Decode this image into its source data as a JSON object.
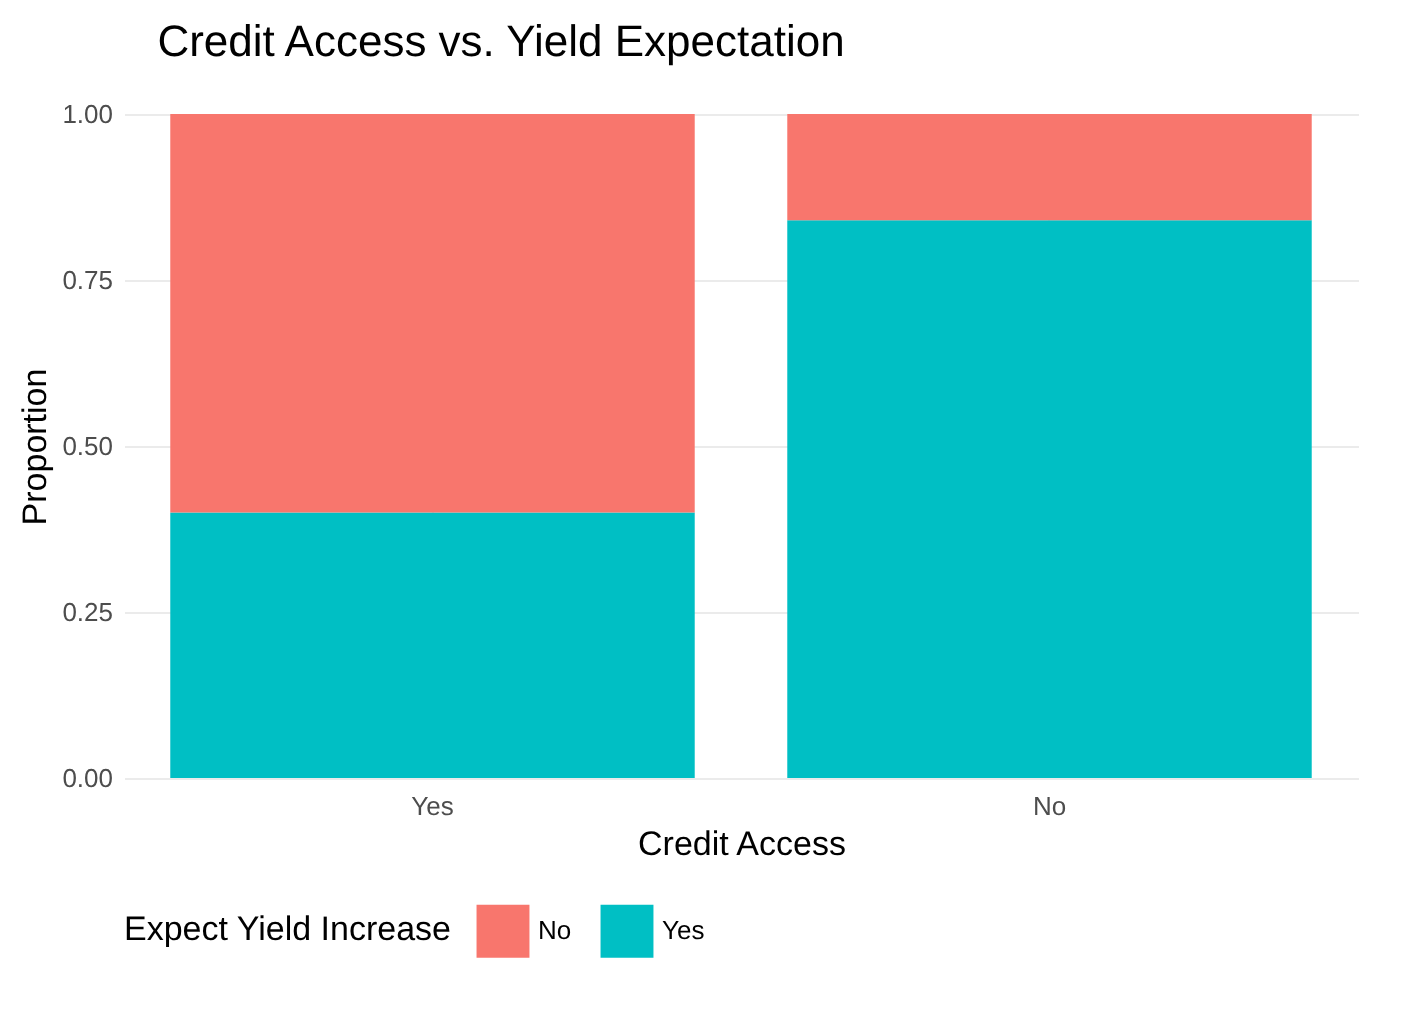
{
  "chart_data": {
    "type": "bar",
    "title": "Credit Access vs. Yield Expectation",
    "xlabel": "Credit Access",
    "ylabel": "Proportion",
    "legend_title": "Expect Yield Increase",
    "categories": [
      "Yes",
      "No"
    ],
    "stacked": true,
    "series": [
      {
        "name": "Yes",
        "color": "#00bfc4",
        "values": [
          0.4,
          0.84
        ]
      },
      {
        "name": "No",
        "color": "#f8766d",
        "values": [
          0.6,
          0.16
        ]
      }
    ],
    "ylim": [
      0,
      1
    ],
    "yticks": [
      {
        "value": 0,
        "label": "0.00"
      },
      {
        "value": 0.25,
        "label": "0.25"
      },
      {
        "value": 0.5,
        "label": "0.50"
      },
      {
        "value": 0.75,
        "label": "0.75"
      },
      {
        "value": 1,
        "label": "1.00"
      }
    ],
    "grid": true,
    "legend": "bottom"
  }
}
